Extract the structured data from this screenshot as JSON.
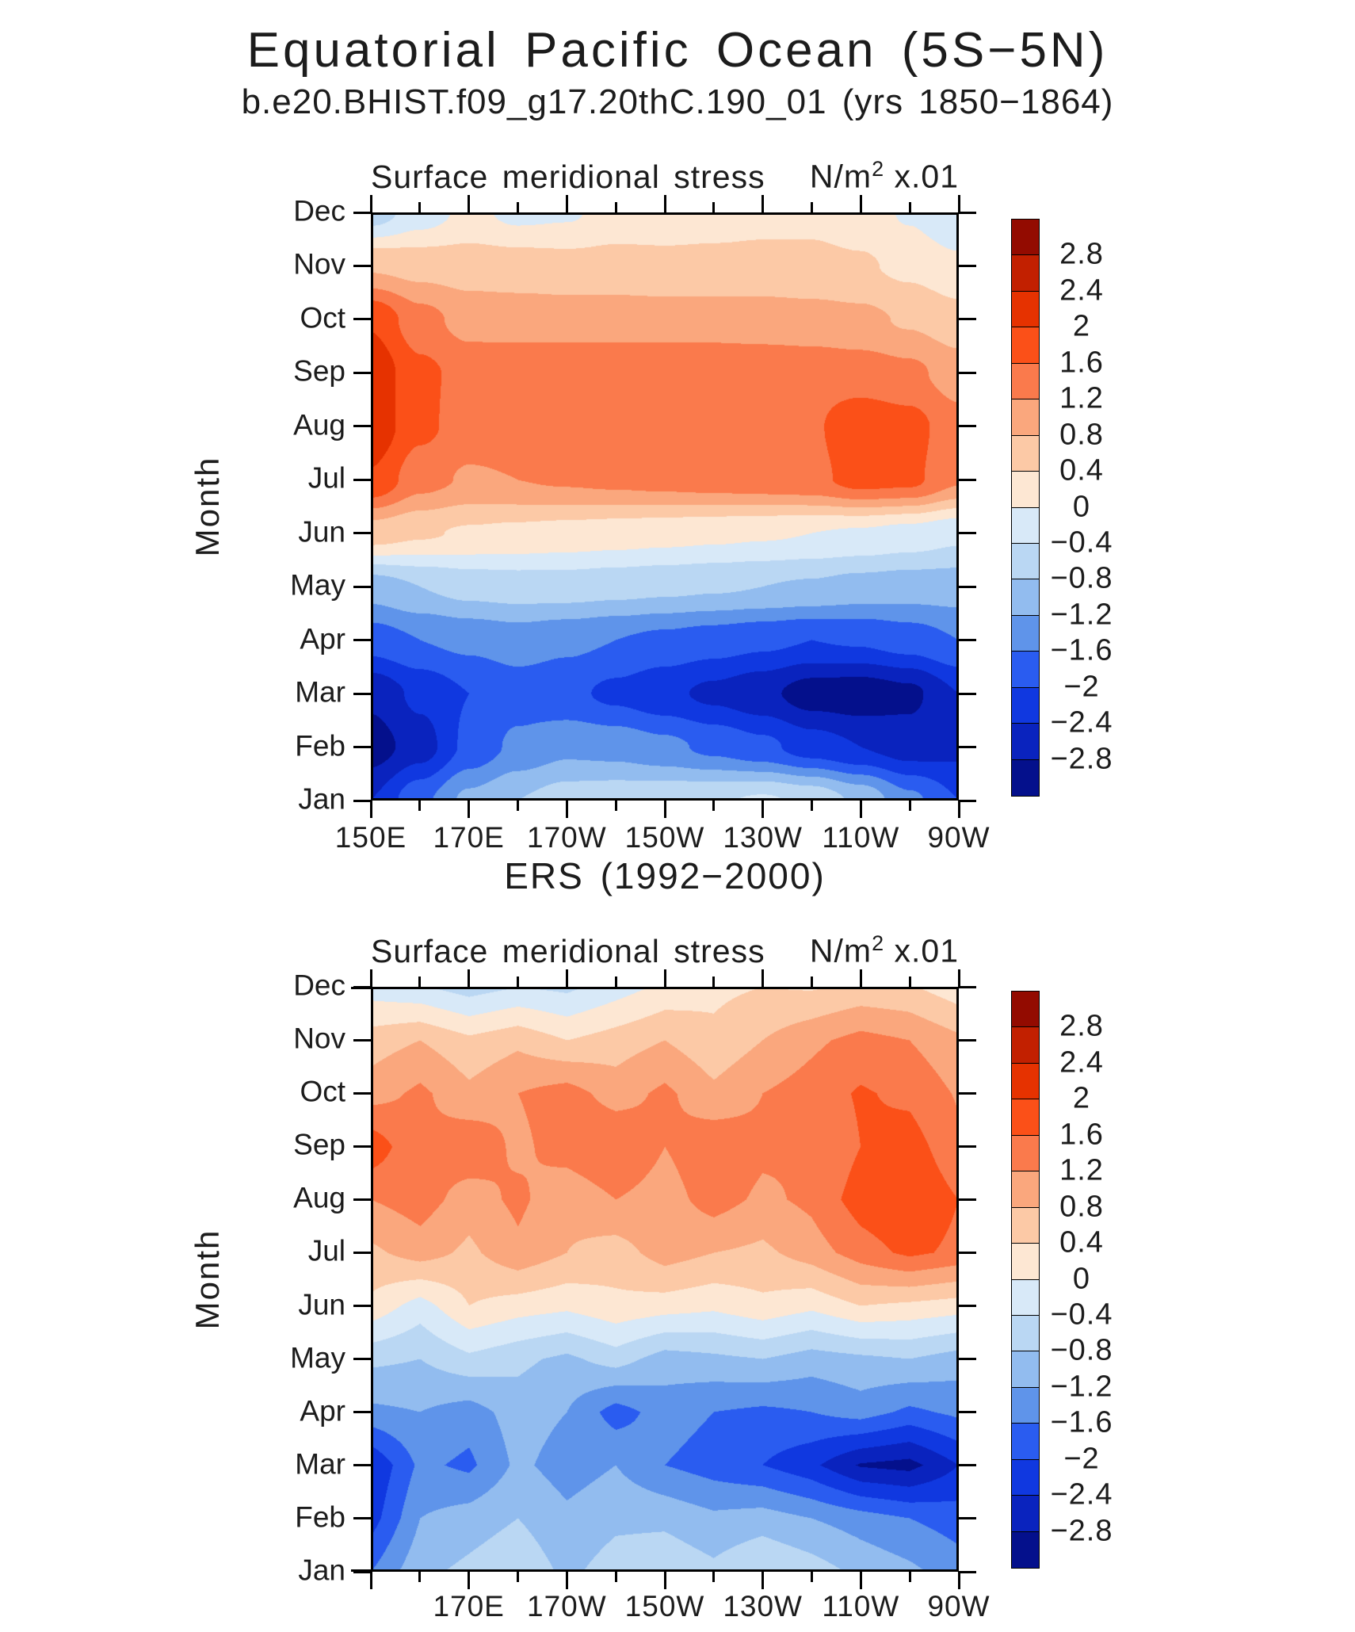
{
  "page": {
    "title": "Equatorial Pacific Ocean (5S−5N)",
    "subtitle": "b.e20.BHIST.f09_g17.20thC.190_01 (yrs 1850−1864)"
  },
  "y_axis": {
    "label": "Month",
    "months": [
      "Jan",
      "Feb",
      "Mar",
      "Apr",
      "May",
      "Jun",
      "Jul",
      "Aug",
      "Sep",
      "Oct",
      "Nov",
      "Dec"
    ]
  },
  "panels": [
    {
      "name": "model",
      "header": "Surface meridional stress",
      "units": {
        "base": "N/m",
        "exp": "2",
        "mult": " x.01"
      },
      "x_tick_labels": [
        "150E",
        "170E",
        "170W",
        "150W",
        "130W",
        "110W",
        "90W"
      ]
    },
    {
      "name": "ers",
      "title": "ERS (1992−2000)",
      "header": "Surface meridional stress",
      "units": {
        "base": "N/m",
        "exp": "2",
        "mult": " x.01"
      },
      "x_tick_labels": [
        "170E",
        "170W",
        "150W",
        "130W",
        "110W",
        "90W"
      ]
    }
  ],
  "colorbar": {
    "tick_labels": [
      "2.8",
      "2.4",
      "2",
      "1.6",
      "1.2",
      "0.8",
      "0.4",
      "0",
      "−0.4",
      "−0.8",
      "−1.2",
      "−1.6",
      "−2",
      "−2.4",
      "−2.8"
    ],
    "orientation": "vertical, positive at top",
    "colors_low_to_high": [
      "#04108C",
      "#0A23BE",
      "#1038E0",
      "#2A5CF0",
      "#5F94EA",
      "#92BCEF",
      "#BAD7F3",
      "#D8E9F8",
      "#FDE7D3",
      "#FCC9A6",
      "#FAA77D",
      "#FA7A4C",
      "#FB5018",
      "#E63200",
      "#C22000",
      "#930B00"
    ]
  },
  "chart_data": [
    {
      "type": "heatmap",
      "title": "b.e20.BHIST.f09_g17.20thC.190_01 (yrs 1850−1864)",
      "field_label": "Surface meridional stress",
      "units": "N/m^2 x.01",
      "y_axis_label": "Month",
      "x_ticks": [
        "150E",
        "170E",
        "170W",
        "150W",
        "130W",
        "110W",
        "90W"
      ],
      "cols": "longitude 150E to 90W every 10 degrees",
      "rows": "months Jan (bottom) to Dec (top)",
      "contour_levels": [
        -2.8,
        -2.4,
        -2,
        -1.6,
        -1.2,
        -0.8,
        -0.4,
        0,
        0.4,
        0.8,
        1.2,
        1.6,
        2,
        2.4,
        2.8
      ],
      "palette_low_to_high": [
        "#04108C",
        "#0A23BE",
        "#1038E0",
        "#2A5CF0",
        "#5F94EA",
        "#92BCEF",
        "#BAD7F3",
        "#D8E9F8",
        "#FDE7D3",
        "#FCC9A6",
        "#FAA77D",
        "#FA7A4C",
        "#FB5018",
        "#E63200",
        "#C22000",
        "#930B00"
      ],
      "interpolation": "smooth",
      "values": [
        [
          -2.4,
          -1.7,
          -1.1,
          -0.8,
          -0.6,
          -0.55,
          -0.5,
          -0.45,
          -0.35,
          -0.5,
          -0.9,
          -1.5,
          -2.0
        ],
        [
          -3.0,
          -2.6,
          -1.9,
          -1.5,
          -1.3,
          -1.35,
          -1.5,
          -1.7,
          -1.9,
          -2.2,
          -2.4,
          -2.6,
          -2.5
        ],
        [
          -2.7,
          -2.3,
          -2.0,
          -1.8,
          -1.9,
          -2.1,
          -2.3,
          -2.5,
          -2.7,
          -3.0,
          -3.05,
          -2.9,
          -2.4
        ],
        [
          -1.8,
          -1.6,
          -1.5,
          -1.4,
          -1.5,
          -1.6,
          -1.7,
          -1.8,
          -1.9,
          -2.0,
          -1.95,
          -1.8,
          -1.6
        ],
        [
          -1.0,
          -0.8,
          -0.65,
          -0.6,
          -0.6,
          -0.65,
          -0.7,
          -0.75,
          -0.8,
          -0.85,
          -0.95,
          -1.0,
          -1.0
        ],
        [
          0.6,
          0.45,
          0.35,
          0.3,
          0.25,
          0.2,
          0.15,
          0.1,
          0.05,
          0.0,
          -0.05,
          -0.15,
          -0.3
        ],
        [
          1.95,
          1.35,
          1.15,
          1.2,
          1.25,
          1.3,
          1.35,
          1.4,
          1.45,
          1.5,
          1.75,
          1.7,
          1.25
        ],
        [
          2.3,
          1.7,
          1.4,
          1.45,
          1.5,
          1.5,
          1.5,
          1.5,
          1.5,
          1.55,
          1.85,
          1.75,
          1.35
        ],
        [
          2.3,
          1.7,
          1.45,
          1.5,
          1.5,
          1.5,
          1.5,
          1.5,
          1.45,
          1.45,
          1.4,
          1.3,
          1.0
        ],
        [
          1.95,
          1.35,
          1.05,
          1.0,
          1.0,
          1.0,
          1.0,
          1.0,
          1.0,
          0.95,
          0.9,
          0.75,
          0.55
        ],
        [
          0.75,
          0.65,
          0.6,
          0.6,
          0.55,
          0.55,
          0.5,
          0.5,
          0.5,
          0.5,
          0.45,
          0.3,
          0.1
        ],
        [
          -0.6,
          -0.2,
          0.1,
          -0.1,
          -0.05,
          0.15,
          0.2,
          0.25,
          0.3,
          0.3,
          0.2,
          -0.05,
          -0.4
        ]
      ]
    },
    {
      "type": "heatmap",
      "title": "ERS (1992−2000)",
      "field_label": "Surface meridional stress",
      "units": "N/m^2 x.01",
      "y_axis_label": "Month",
      "x_ticks": [
        "170E",
        "170W",
        "150W",
        "130W",
        "110W",
        "90W"
      ],
      "cols": "longitude 150E to 90W every 10 degrees",
      "rows": "months Jan (bottom) to Dec (top)",
      "contour_levels": [
        -2.8,
        -2.4,
        -2,
        -1.6,
        -1.2,
        -0.8,
        -0.4,
        0,
        0.4,
        0.8,
        1.2,
        1.6,
        2,
        2.4,
        2.8
      ],
      "palette_low_to_high": [
        "#04108C",
        "#0A23BE",
        "#1038E0",
        "#2A5CF0",
        "#5F94EA",
        "#92BCEF",
        "#BAD7F3",
        "#D8E9F8",
        "#FDE7D3",
        "#FCC9A6",
        "#FAA77D",
        "#FA7A4C",
        "#FB5018",
        "#E63200",
        "#C22000",
        "#930B00"
      ],
      "interpolation": "linear",
      "values": [
        [
          -1.6,
          -0.9,
          -0.7,
          -0.5,
          -0.9,
          -0.6,
          -0.5,
          -0.7,
          -0.4,
          -0.6,
          -0.9,
          -1.1,
          -1.4
        ],
        [
          -2.2,
          -1.2,
          -1.0,
          -0.8,
          -1.1,
          -0.9,
          -0.9,
          -1.1,
          -1.0,
          -1.2,
          -1.4,
          -1.6,
          -1.8
        ],
        [
          -2.4,
          -1.5,
          -1.7,
          -1.1,
          -1.4,
          -1.2,
          -1.6,
          -1.8,
          -2.0,
          -2.3,
          -2.85,
          -2.95,
          -2.4
        ],
        [
          -1.3,
          -1.2,
          -1.4,
          -1.0,
          -1.2,
          -1.8,
          -1.4,
          -1.6,
          -1.7,
          -1.6,
          -1.4,
          -1.7,
          -1.5
        ],
        [
          -0.7,
          -0.8,
          -0.5,
          -0.7,
          -0.9,
          -0.6,
          -1.0,
          -0.9,
          -0.8,
          -1.0,
          -0.9,
          -0.8,
          -1.0
        ],
        [
          0.3,
          -0.2,
          0.4,
          0.2,
          0.1,
          0.3,
          0.2,
          0.1,
          0.3,
          0.1,
          0.4,
          0.3,
          0.2
        ],
        [
          0.7,
          1.0,
          0.7,
          1.1,
          0.8,
          0.6,
          1.0,
          0.8,
          0.7,
          1.0,
          1.4,
          1.7,
          1.5
        ],
        [
          1.2,
          1.4,
          1.0,
          1.3,
          0.9,
          1.2,
          1.0,
          1.4,
          1.1,
          1.3,
          1.8,
          1.95,
          1.6
        ],
        [
          1.9,
          1.2,
          1.5,
          1.1,
          1.4,
          1.6,
          1.2,
          1.5,
          1.3,
          1.2,
          1.6,
          1.8,
          1.3
        ],
        [
          1.0,
          1.3,
          0.9,
          1.2,
          1.4,
          1.0,
          1.3,
          0.9,
          1.2,
          1.4,
          1.65,
          1.5,
          1.15
        ],
        [
          0.6,
          0.8,
          0.5,
          0.7,
          0.4,
          0.6,
          0.8,
          0.5,
          0.8,
          1.1,
          1.35,
          1.2,
          0.9
        ],
        [
          -0.2,
          -0.35,
          -0.6,
          -0.4,
          -0.5,
          -0.2,
          0.1,
          0.3,
          0.4,
          0.35,
          0.5,
          0.45,
          0.15
        ]
      ]
    }
  ]
}
